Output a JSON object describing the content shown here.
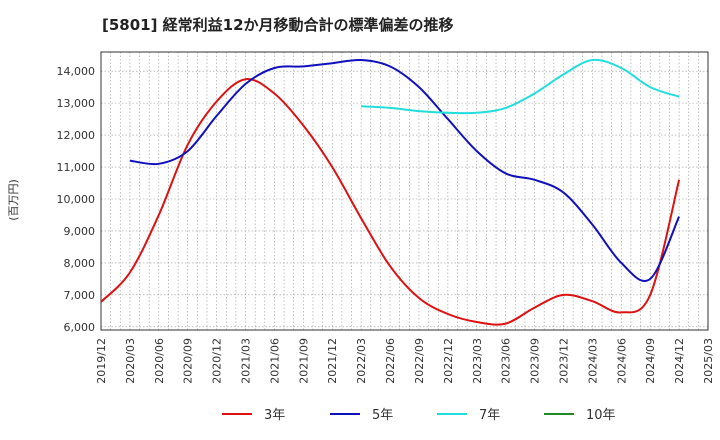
{
  "chart_data": {
    "type": "line",
    "title": "[5801]  経常利益12か月移動合計の標準偏差の推移",
    "ylabel": "(百万円)",
    "xlabel": "",
    "ylim": [
      5900,
      14600
    ],
    "yticks": [
      6000,
      7000,
      8000,
      9000,
      10000,
      11000,
      12000,
      13000,
      14000
    ],
    "ytick_labels": [
      "6,000",
      "7,000",
      "8,000",
      "9,000",
      "10,000",
      "11,000",
      "12,000",
      "13,000",
      "14,000"
    ],
    "xticks": [
      "2019/12",
      "2020/03",
      "2020/06",
      "2020/09",
      "2020/12",
      "2021/03",
      "2021/06",
      "2021/09",
      "2021/12",
      "2022/03",
      "2022/06",
      "2022/09",
      "2022/12",
      "2023/03",
      "2023/06",
      "2023/09",
      "2023/12",
      "2024/03",
      "2024/06",
      "2024/09",
      "2024/12",
      "2025/03"
    ],
    "grid": true,
    "legend_position": "bottom",
    "series": [
      {
        "name": "3年",
        "color": "#dd1111",
        "points": [
          [
            "2019/12",
            6780
          ],
          [
            "2020/03",
            7700
          ],
          [
            "2020/06",
            9500
          ],
          [
            "2020/09",
            11700
          ],
          [
            "2020/12",
            13050
          ],
          [
            "2021/03",
            13750
          ],
          [
            "2021/06",
            13300
          ],
          [
            "2021/09",
            12300
          ],
          [
            "2021/12",
            11000
          ],
          [
            "2022/03",
            9400
          ],
          [
            "2022/06",
            7900
          ],
          [
            "2022/09",
            6900
          ],
          [
            "2022/12",
            6400
          ],
          [
            "2023/03",
            6150
          ],
          [
            "2023/06",
            6100
          ],
          [
            "2023/09",
            6600
          ],
          [
            "2023/12",
            7000
          ],
          [
            "2024/03",
            6800
          ],
          [
            "2024/06",
            6450
          ],
          [
            "2024/09",
            7000
          ],
          [
            "2024/12",
            10600
          ]
        ]
      },
      {
        "name": "5年",
        "color": "#1111bb",
        "points": [
          [
            "2020/03",
            11200
          ],
          [
            "2020/06",
            11100
          ],
          [
            "2020/09",
            11500
          ],
          [
            "2020/12",
            12600
          ],
          [
            "2021/03",
            13600
          ],
          [
            "2021/06",
            14100
          ],
          [
            "2021/09",
            14150
          ],
          [
            "2021/12",
            14250
          ],
          [
            "2022/03",
            14350
          ],
          [
            "2022/06",
            14150
          ],
          [
            "2022/09",
            13500
          ],
          [
            "2022/12",
            12500
          ],
          [
            "2023/03",
            11500
          ],
          [
            "2023/06",
            10800
          ],
          [
            "2023/09",
            10600
          ],
          [
            "2023/12",
            10200
          ],
          [
            "2024/03",
            9200
          ],
          [
            "2024/06",
            8000
          ],
          [
            "2024/09",
            7500
          ],
          [
            "2024/12",
            9450
          ]
        ]
      },
      {
        "name": "7年",
        "color": "#22dddd",
        "points": [
          [
            "2022/03",
            12900
          ],
          [
            "2022/06",
            12850
          ],
          [
            "2022/09",
            12750
          ],
          [
            "2022/12",
            12700
          ],
          [
            "2023/03",
            12700
          ],
          [
            "2023/06",
            12850
          ],
          [
            "2023/09",
            13300
          ],
          [
            "2023/12",
            13900
          ],
          [
            "2024/03",
            14350
          ],
          [
            "2024/06",
            14100
          ],
          [
            "2024/09",
            13500
          ],
          [
            "2024/12",
            13200
          ]
        ]
      },
      {
        "name": "10年",
        "color": "#228822",
        "points": []
      }
    ]
  }
}
